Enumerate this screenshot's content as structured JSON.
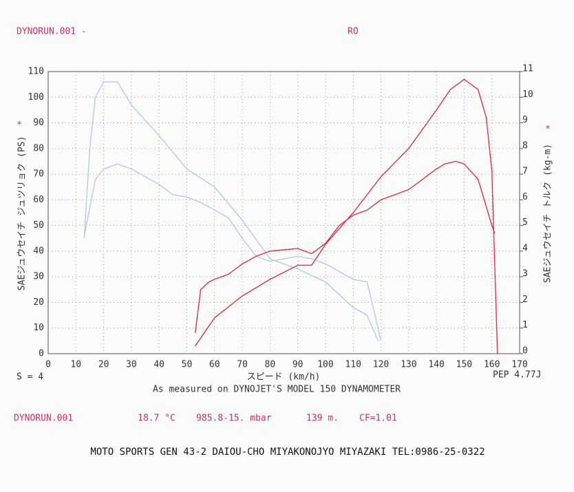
{
  "chart_data": {
    "type": "line",
    "title": "DYNORUN.001 -",
    "subtitle": "RO",
    "ylabel": "SAEジュウセイチ ジュツリョク (PS)",
    "y2label": "SAEジュウセイチ トルク (kg-m)",
    "axis_marker": "*",
    "xlabel": "スピード (km/h)",
    "smoothing": "S = 4",
    "pep": "PEP 4.77J",
    "caption": "As measured on DYNOJET'S MODEL 150 DYNAMOMETER",
    "footer": [
      "DYNORUN.001",
      "18.7 °C",
      "985.8-15. mbar",
      "139 m.",
      "CF=1.01"
    ],
    "address": "MOTO SPORTS GEN  43-2 DAIOU-CHO MIYAKONOJYO MIYAZAKI  TEL:0986-25-0322",
    "xlim": [
      0,
      170
    ],
    "xticks": [
      0,
      10,
      20,
      30,
      40,
      50,
      60,
      70,
      80,
      90,
      100,
      110,
      120,
      130,
      140,
      150,
      160,
      170
    ],
    "ylim": [
      0,
      110
    ],
    "yticks": [
      0,
      10,
      20,
      30,
      40,
      50,
      60,
      70,
      80,
      90,
      100,
      110
    ],
    "y2lim": [
      0,
      11
    ],
    "y2ticks": [
      0,
      1,
      2,
      3,
      4,
      5,
      6,
      7,
      8,
      9,
      10,
      11
    ],
    "grid": true,
    "series": [
      {
        "color": "#b8c8e8",
        "x": [
          13,
          15,
          17,
          20,
          25,
          30,
          40,
          50,
          60,
          70,
          80,
          90,
          100,
          110,
          115,
          119
        ],
        "values": [
          45,
          80,
          100,
          106,
          106,
          97,
          85,
          72,
          65,
          52,
          37,
          33,
          28,
          18,
          15,
          5
        ]
      },
      {
        "color": "#b8c8e8",
        "axis": "y2",
        "x": [
          13,
          17,
          20,
          25,
          30,
          40,
          45,
          50,
          55,
          60,
          65,
          70,
          75,
          80,
          90,
          95,
          100,
          110,
          115,
          120
        ],
        "values": [
          4.6,
          6.8,
          7.2,
          7.4,
          7.2,
          6.6,
          6.2,
          6.1,
          5.9,
          5.6,
          5.3,
          4.5,
          3.8,
          3.6,
          3.8,
          3.7,
          3.5,
          2.9,
          2.8,
          0.5
        ]
      },
      {
        "color": "#e0304a",
        "x": [
          53,
          60,
          70,
          80,
          90,
          95,
          100,
          110,
          120,
          130,
          140,
          145,
          150,
          155,
          158,
          160,
          162
        ],
        "values": [
          3,
          14,
          22.5,
          29,
          34.5,
          34.5,
          42.6,
          55,
          69,
          80,
          95,
          103,
          107,
          103,
          92,
          71,
          0
        ]
      },
      {
        "color": "#e0304a",
        "axis": "y2",
        "x": [
          53,
          55,
          58,
          60,
          65,
          70,
          75,
          80,
          85,
          90,
          95,
          100,
          105,
          110,
          115,
          120,
          130,
          140,
          143,
          147,
          150,
          155,
          160,
          161
        ],
        "values": [
          0.8,
          2.5,
          2.8,
          2.9,
          3.1,
          3.5,
          3.8,
          4.0,
          4.05,
          4.1,
          3.9,
          4.3,
          5.0,
          5.4,
          5.6,
          6.0,
          6.4,
          7.2,
          7.4,
          7.5,
          7.4,
          6.8,
          5.0,
          4.7
        ]
      }
    ]
  }
}
